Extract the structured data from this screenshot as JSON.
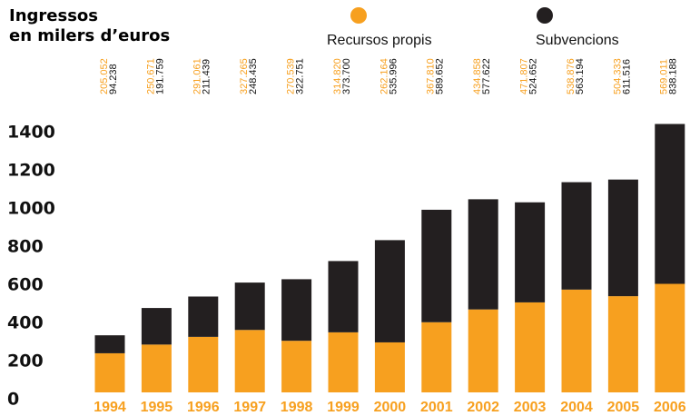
{
  "chart_data": {
    "type": "stacked_bar",
    "title": "Ingressos",
    "subtitle": "en milers d’euros",
    "categories": [
      "1994",
      "1995",
      "1996",
      "1997",
      "1998",
      "1999",
      "2000",
      "2001",
      "2002",
      "2003",
      "2004",
      "2005",
      "2006"
    ],
    "series": [
      {
        "name": "Recursos propis",
        "color": "#f7a01f",
        "values": [
          205.052,
          250.671,
          291.061,
          327.265,
          270.539,
          314.82,
          262.164,
          367.81,
          434.858,
          471.807,
          538.876,
          504.333,
          569.011
        ],
        "value_labels": [
          "205.052",
          "250.671",
          "291.061",
          "327.265",
          "270.539",
          "314.820",
          "262.164",
          "367.810",
          "434.858",
          "471.807",
          "538.876",
          "504.333",
          "569.011"
        ]
      },
      {
        "name": "Subvencions",
        "color": "#231f20",
        "values": [
          94.238,
          191.759,
          211.439,
          248.435,
          322.751,
          373.7,
          535.996,
          589.652,
          577.622,
          524.652,
          563.194,
          611.516,
          838.188
        ],
        "value_labels": [
          "94.238",
          "191.759",
          "211.439",
          "248.435",
          "322.751",
          "373.700",
          "535.996",
          "589.652",
          "577.622",
          "524.652",
          "563.194",
          "611.516",
          "838.188"
        ]
      }
    ],
    "ylim": [
      0,
      1400
    ],
    "yticks": [
      0,
      200,
      400,
      600,
      800,
      1000,
      1200,
      1400
    ]
  }
}
